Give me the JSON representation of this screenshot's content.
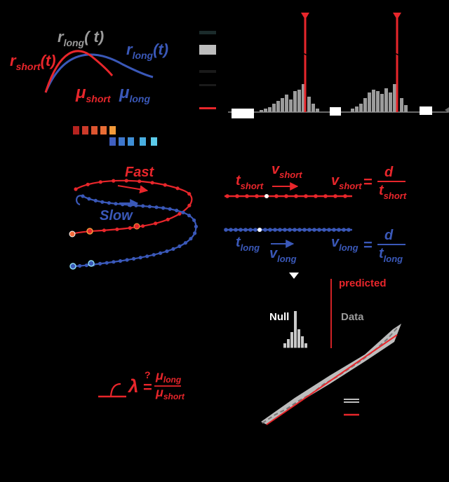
{
  "colors": {
    "short": "#e8262b",
    "long": "#3a58b8",
    "gray": "#9b9b9b",
    "light_gray": "#c9c9c9",
    "white": "#ffffff",
    "background": "#000000"
  },
  "panel_a": {
    "r_long_mid": "r",
    "r_long_mid_sub": "long",
    "r_long_mid_paren": "(   t)",
    "r_short": "r",
    "r_short_sub": "short",
    "r_short_paren": "(t)",
    "r_long": "r",
    "r_long_sub": "long",
    "r_long_paren": "(t)",
    "mu_short": "μ",
    "mu_short_sub": "short",
    "mu_long": "μ",
    "mu_long_sub": "long"
  },
  "panel_traj": {
    "fast": "Fast",
    "slow": "Slow"
  },
  "panel_speed": {
    "t_short": "t",
    "t_short_sub": "short",
    "v_short": "v",
    "v_short_sub": "short",
    "eq_v_short": "v",
    "eq_v_short_sub": "short",
    "equals": "=",
    "d_short": "d",
    "den_short": "t",
    "den_short_sub": "short",
    "t_long": "t",
    "t_long_sub": "long",
    "v_long": "v",
    "v_long_sub": "long",
    "eq_v_long": "v",
    "eq_v_long_sub": "long",
    "d_long": "d",
    "den_long": "t",
    "den_long_sub": "long"
  },
  "panel_null": {
    "predicted": "predicted",
    "null": "Null",
    "data": "Data"
  },
  "panel_lambda": {
    "lambda": "λ",
    "equals_q": "=",
    "question": "?",
    "num": "μ",
    "num_sub": "long",
    "den": "μ",
    "den_sub": "short"
  }
}
